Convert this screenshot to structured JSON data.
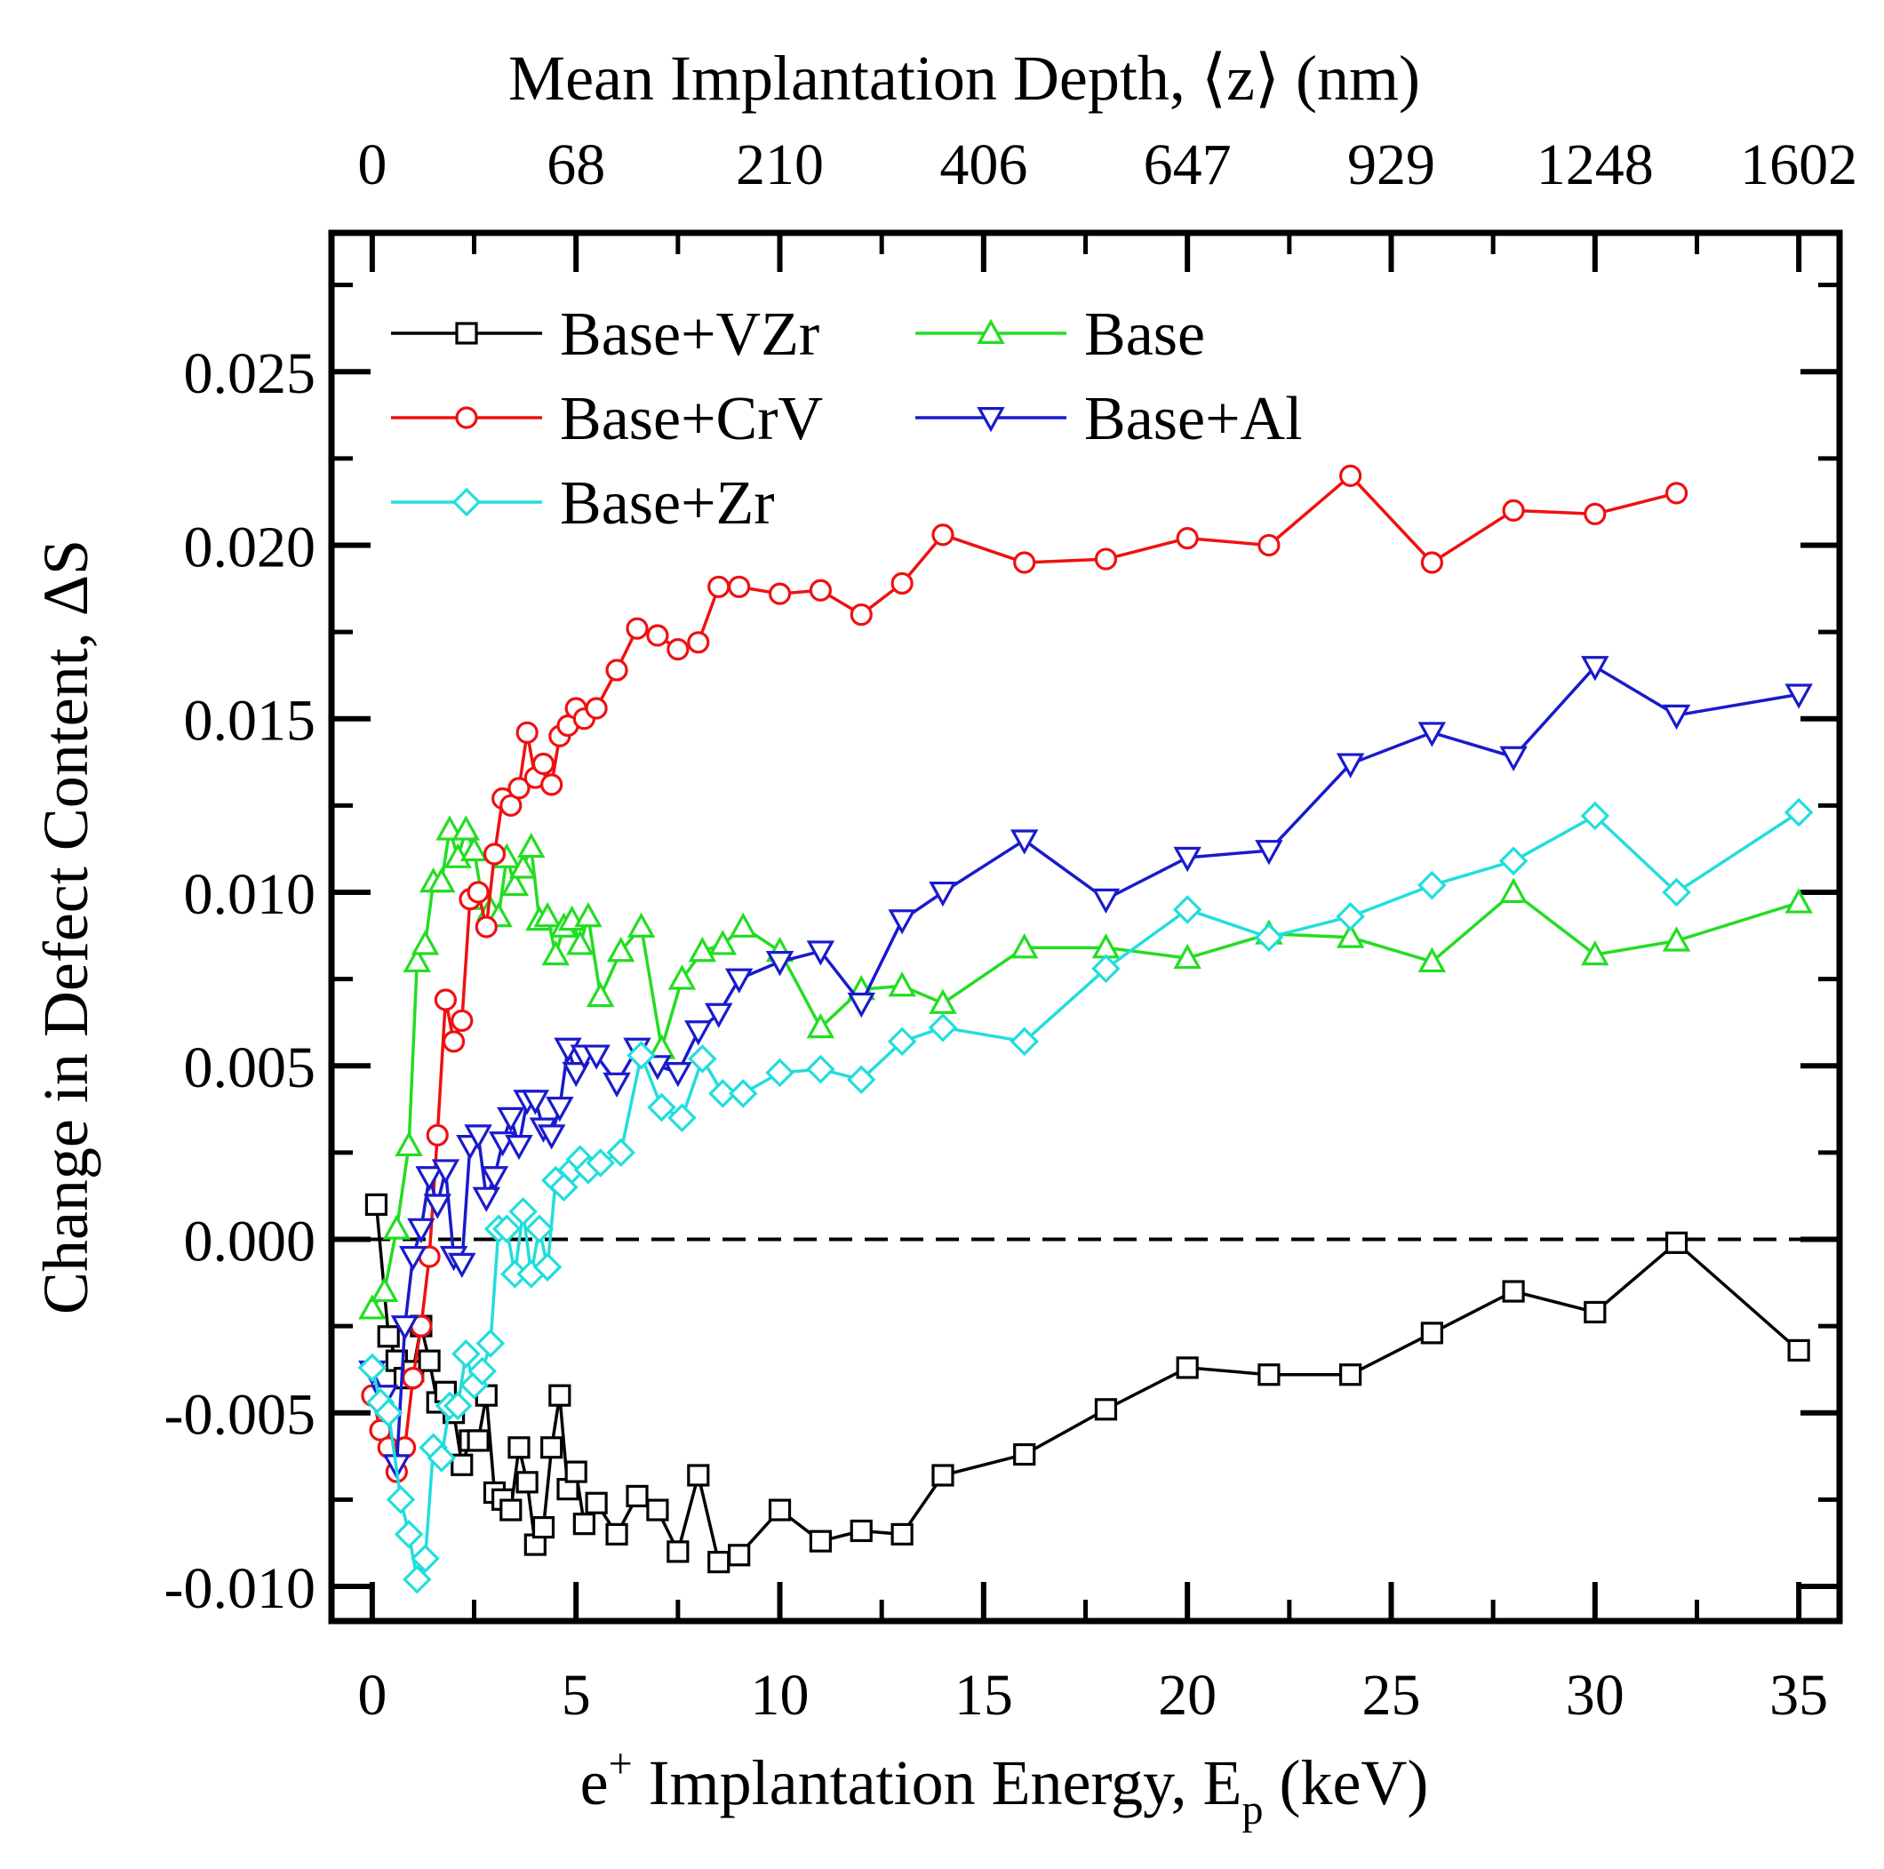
{
  "chart_data": {
    "type": "line",
    "xlabel": "e⁺ Implantation Energy, Eₚ (keV)",
    "xlabel_main": "e",
    "xlabel_sup": "+",
    "xlabel_mid": " Implantation Energy, E",
    "xlabel_sub": "p",
    "xlabel_end": " (keV)",
    "x2label": "Mean Implantation Depth, ⟨z⟩ (nm)",
    "ylabel": "Change in Defect Content, ΔS",
    "xlim": [
      -1,
      36
    ],
    "ylim": [
      -0.011,
      0.029
    ],
    "x_ticks": [
      0,
      5,
      10,
      15,
      20,
      25,
      30,
      35
    ],
    "x_tick_labels": [
      "0",
      "5",
      "10",
      "15",
      "20",
      "25",
      "30",
      "35"
    ],
    "x2_ticks": [
      0,
      5,
      10,
      15,
      20,
      25,
      30,
      35
    ],
    "x2_tick_labels": [
      "0",
      "68",
      "210",
      "406",
      "647",
      "929",
      "1248",
      "1602"
    ],
    "y_ticks": [
      -0.01,
      -0.005,
      0.0,
      0.005,
      0.01,
      0.015,
      0.02,
      0.025
    ],
    "y_tick_labels": [
      "-0.010",
      "-0.005",
      "0.000",
      "0.005",
      "0.010",
      "0.015",
      "0.020",
      "0.025"
    ],
    "reference_line": {
      "y": 0,
      "style": "dashed"
    },
    "legend_placement": "top-left",
    "series": [
      {
        "name": "Base+VZr",
        "color": "#000000",
        "marker": "square",
        "x": [
          0.1,
          0.4,
          0.6,
          0.8,
          1.0,
          1.2,
          1.4,
          1.6,
          1.8,
          2.0,
          2.2,
          2.4,
          2.6,
          2.8,
          3.0,
          3.2,
          3.4,
          3.6,
          3.8,
          4.0,
          4.2,
          4.4,
          4.6,
          4.8,
          5.0,
          5.2,
          5.5,
          6.0,
          6.5,
          7.0,
          7.5,
          8.0,
          8.5,
          9.0,
          10.0,
          11.0,
          12.0,
          13.0,
          14.0,
          16.0,
          18.0,
          20.0,
          22.0,
          24.0,
          26.0,
          28.0,
          30.0,
          32.0,
          35.0
        ],
        "y": [
          0.001,
          -0.0028,
          -0.0035,
          -0.004,
          -0.0038,
          -0.0025,
          -0.0035,
          -0.0047,
          -0.0044,
          -0.005,
          -0.0065,
          -0.0058,
          -0.0058,
          -0.0045,
          -0.0073,
          -0.0075,
          -0.0078,
          -0.006,
          -0.007,
          -0.0088,
          -0.0083,
          -0.006,
          -0.0045,
          -0.0072,
          -0.0067,
          -0.0082,
          -0.0076,
          -0.0085,
          -0.0074,
          -0.0078,
          -0.009,
          -0.0068,
          -0.0093,
          -0.0091,
          -0.0078,
          -0.0087,
          -0.0084,
          -0.0085,
          -0.0068,
          -0.0062,
          -0.0049,
          -0.0037,
          -0.0039,
          -0.0039,
          -0.0027,
          -0.0015,
          -0.0021,
          -0.0001,
          -0.0032
        ]
      },
      {
        "name": "Base",
        "color": "#22dd22",
        "marker": "triangle-up",
        "x": [
          0.0,
          0.3,
          0.6,
          0.9,
          1.1,
          1.3,
          1.5,
          1.7,
          1.9,
          2.1,
          2.3,
          2.5,
          2.7,
          2.9,
          3.1,
          3.3,
          3.5,
          3.7,
          3.9,
          4.1,
          4.3,
          4.5,
          4.7,
          4.9,
          5.1,
          5.3,
          5.6,
          6.1,
          6.6,
          7.1,
          7.6,
          8.1,
          8.6,
          9.1,
          10.0,
          11.0,
          12.0,
          13.0,
          14.0,
          16.0,
          18.0,
          20.0,
          22.0,
          24.0,
          26.0,
          28.0,
          30.0,
          32.0,
          35.0
        ],
        "y": [
          -0.002,
          -0.0015,
          0.0003,
          0.0027,
          0.008,
          0.0085,
          0.0103,
          0.0103,
          0.0118,
          0.011,
          0.0118,
          0.0112,
          0.0098,
          0.0095,
          0.0093,
          0.011,
          0.0102,
          0.0107,
          0.0113,
          0.0092,
          0.0093,
          0.0082,
          0.009,
          0.0092,
          0.0085,
          0.0093,
          0.007,
          0.0083,
          0.009,
          0.0055,
          0.0075,
          0.0083,
          0.0085,
          0.009,
          0.0083,
          0.0061,
          0.0072,
          0.0073,
          0.0068,
          0.0084,
          0.0084,
          0.0081,
          0.0088,
          0.0087,
          0.008,
          0.01,
          0.0082,
          0.0086,
          0.0097
        ]
      },
      {
        "name": "Base+CrV",
        "color": "#ee1111",
        "marker": "circle",
        "x": [
          0.0,
          0.2,
          0.4,
          0.6,
          0.8,
          1.0,
          1.2,
          1.4,
          1.6,
          1.8,
          2.0,
          2.2,
          2.4,
          2.6,
          2.8,
          3.0,
          3.2,
          3.4,
          3.6,
          3.8,
          4.0,
          4.2,
          4.4,
          4.6,
          4.8,
          5.0,
          5.2,
          5.5,
          6.0,
          6.5,
          7.0,
          7.5,
          8.0,
          8.5,
          9.0,
          10.0,
          11.0,
          12.0,
          13.0,
          14.0,
          16.0,
          18.0,
          20.0,
          22.0,
          24.0,
          26.0,
          28.0,
          30.0,
          32.0
        ],
        "y": [
          -0.0045,
          -0.0055,
          -0.006,
          -0.0067,
          -0.006,
          -0.004,
          -0.0025,
          -0.0005,
          0.003,
          0.0069,
          0.0057,
          0.0063,
          0.0098,
          0.01,
          0.009,
          0.0111,
          0.0127,
          0.0125,
          0.013,
          0.0146,
          0.0133,
          0.0137,
          0.0131,
          0.0145,
          0.0148,
          0.0153,
          0.015,
          0.0153,
          0.0164,
          0.0176,
          0.0174,
          0.017,
          0.0172,
          0.0188,
          0.0188,
          0.0186,
          0.0187,
          0.018,
          0.0189,
          0.0203,
          0.0195,
          0.0196,
          0.0202,
          0.02,
          0.022,
          0.0195,
          0.021,
          0.0209,
          0.0215
        ]
      },
      {
        "name": "Base+Al",
        "color": "#1a1acc",
        "marker": "triangle-down",
        "x": [
          0.0,
          0.3,
          0.6,
          0.8,
          1.0,
          1.2,
          1.4,
          1.6,
          1.8,
          2.0,
          2.2,
          2.4,
          2.6,
          2.8,
          3.0,
          3.2,
          3.4,
          3.6,
          3.8,
          4.0,
          4.2,
          4.4,
          4.6,
          4.8,
          5.0,
          5.2,
          5.5,
          6.0,
          6.5,
          7.0,
          7.5,
          8.0,
          8.5,
          9.0,
          10.0,
          11.0,
          12.0,
          13.0,
          14.0,
          16.0,
          18.0,
          20.0,
          22.0,
          24.0,
          26.0,
          28.0,
          30.0,
          32.0,
          35.0
        ],
        "y": [
          -0.0038,
          -0.0045,
          -0.0065,
          -0.0025,
          -0.0005,
          0.0003,
          0.0018,
          0.001,
          0.002,
          -0.0005,
          -0.0007,
          0.0027,
          0.003,
          0.0012,
          0.0018,
          0.0028,
          0.0035,
          0.0027,
          0.004,
          0.004,
          0.0032,
          0.003,
          0.0038,
          0.0055,
          0.0048,
          0.0053,
          0.0053,
          0.0045,
          0.0055,
          0.005,
          0.0048,
          0.006,
          0.0065,
          0.0075,
          0.008,
          0.0083,
          0.0068,
          0.0092,
          0.01,
          0.0115,
          0.0098,
          0.011,
          0.0112,
          0.0137,
          0.0146,
          0.0139,
          0.0165,
          0.0151,
          0.0157
        ]
      },
      {
        "name": "Base+Zr",
        "color": "#22dddd",
        "marker": "diamond",
        "x": [
          0.0,
          0.2,
          0.4,
          0.7,
          0.9,
          1.1,
          1.3,
          1.5,
          1.7,
          1.9,
          2.1,
          2.3,
          2.5,
          2.7,
          2.9,
          3.1,
          3.3,
          3.5,
          3.7,
          3.9,
          4.1,
          4.3,
          4.5,
          4.7,
          4.9,
          5.1,
          5.3,
          5.6,
          6.1,
          6.6,
          7.1,
          7.6,
          8.1,
          8.6,
          9.1,
          10.0,
          11.0,
          12.0,
          13.0,
          14.0,
          16.0,
          18.0,
          20.0,
          22.0,
          24.0,
          26.0,
          28.0,
          30.0,
          32.0,
          35.0
        ],
        "y": [
          -0.0037,
          -0.0047,
          -0.005,
          -0.0075,
          -0.0085,
          -0.0098,
          -0.0092,
          -0.006,
          -0.0063,
          -0.0048,
          -0.0048,
          -0.0033,
          -0.0042,
          -0.0038,
          -0.003,
          0.0003,
          0.0003,
          -0.001,
          0.0008,
          -0.001,
          0.0003,
          -0.0008,
          0.0017,
          0.0015,
          0.002,
          0.0023,
          0.002,
          0.0022,
          0.0025,
          0.0053,
          0.0038,
          0.0035,
          0.0052,
          0.0042,
          0.0042,
          0.0048,
          0.0049,
          0.0046,
          0.0057,
          0.0061,
          0.0057,
          0.0078,
          0.0095,
          0.0087,
          0.0093,
          0.0102,
          0.0109,
          0.0122,
          0.01,
          0.0123
        ]
      }
    ]
  }
}
